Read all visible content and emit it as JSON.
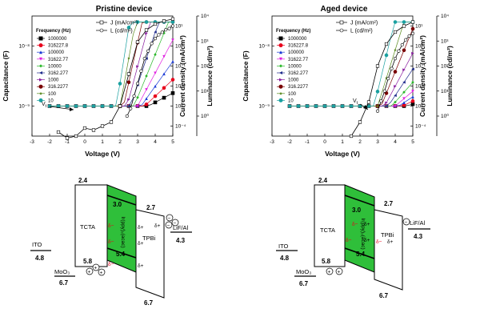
{
  "chart_data": [
    {
      "type": "line",
      "title": "Pristine device",
      "xlabel": "Voltage (V)",
      "ylabel": "Capacitance (F)",
      "y2label": "Current density (mA/cm²)",
      "y3label": "Luminance (cd/m²)",
      "xlim": [
        -3,
        5
      ],
      "x_ticks": [
        "-3",
        "-2",
        "-1",
        "0",
        "1",
        "2",
        "3",
        "4",
        "5"
      ],
      "y_ticks": [
        "10⁻⁹",
        "10⁻⁸"
      ],
      "y2_ticks": [
        "10⁻⁴",
        "10⁻³",
        "10⁻²",
        "10⁻¹",
        "10⁰",
        "10¹"
      ],
      "y3_ticks": [
        "10⁰",
        "10¹",
        "10²",
        "10³",
        "10⁴"
      ],
      "annotation": "V",
      "annotation_sub": "t",
      "legend_title": "Frequency (Hz)",
      "jl_legend": [
        {
          "label": "J (mA/cm²)"
        },
        {
          "label": "L (cd/m²)"
        }
      ],
      "series": [
        {
          "name": "1000000",
          "color": "#000000",
          "marker": "square"
        },
        {
          "name": "316227.8",
          "color": "#e8001c",
          "marker": "circle"
        },
        {
          "name": "100000",
          "color": "#1a3ad6",
          "marker": "triangle-up"
        },
        {
          "name": "31622.77",
          "color": "#e020e0",
          "marker": "triangle-down"
        },
        {
          "name": "10000",
          "color": "#2ab82a",
          "marker": "diamond"
        },
        {
          "name": "3162.277",
          "color": "#1e2a8c",
          "marker": "triangle-left"
        },
        {
          "name": "1000",
          "color": "#8a1ea0",
          "marker": "triangle-right"
        },
        {
          "name": "316.2277",
          "color": "#7a0000",
          "marker": "circle"
        },
        {
          "name": "100",
          "color": "#5a8a1e",
          "marker": "star"
        },
        {
          "name": "10",
          "color": "#1aa0a0",
          "marker": "circle"
        }
      ],
      "onset_v": [
        3.6,
        3.4,
        3.2,
        3.0,
        2.8,
        2.6,
        2.4,
        2.2,
        2.0,
        1.8
      ],
      "rise_k": [
        0.28,
        0.5,
        0.75,
        1.0,
        1.3,
        1.6,
        2.0,
        2.4,
        2.9,
        3.4
      ],
      "baseline_log_c": -9.0,
      "current_v": [
        -1.5,
        -1.0,
        -0.5,
        0.0,
        0.5,
        1.0,
        1.5,
        2.0,
        2.5,
        3.0,
        3.5,
        4.0,
        4.5,
        5.0
      ],
      "current_log": [
        -4.3,
        -4.6,
        -4.5,
        -4.1,
        -4.2,
        -4.0,
        -3.8,
        -3.0,
        -1.4,
        0.2,
        0.8,
        1.1,
        1.25,
        1.35
      ],
      "lum_v": [
        2.4,
        2.6,
        2.8,
        3.0,
        3.2,
        3.4,
        3.6,
        3.8,
        4.0,
        4.2,
        4.4,
        4.6,
        4.8,
        5.0
      ],
      "lum_log": [
        0.0,
        0.3,
        0.8,
        1.3,
        1.8,
        2.3,
        2.6,
        2.9,
        3.1,
        3.25,
        3.35,
        3.45,
        3.5,
        3.6
      ]
    },
    {
      "type": "line",
      "title": "Aged device",
      "xlabel": "Voltage (V)",
      "ylabel": "Capacitance (F)",
      "y2label": "Current density (mA/cm²)",
      "y3label": "Luminance (cd/m²)",
      "xlim": [
        -3,
        5
      ],
      "x_ticks": [
        "-3",
        "-2",
        "-1",
        "0",
        "1",
        "2",
        "3",
        "4",
        "5"
      ],
      "y_ticks": [
        "10⁻⁹",
        "10⁻⁸"
      ],
      "y2_ticks": [
        "10⁻⁴",
        "10⁻³",
        "10⁻²",
        "10⁻¹",
        "10⁰",
        "10¹"
      ],
      "y3_ticks": [
        "10⁰",
        "10¹",
        "10²",
        "10³",
        "10⁴"
      ],
      "annotation": "V",
      "annotation_sub": "t",
      "legend_title": "Frequency (Hz)",
      "jl_legend": [
        {
          "label": "J (mA/cm²)"
        },
        {
          "label": "L (cd/m²)"
        }
      ],
      "series": [
        {
          "name": "1000000",
          "color": "#000000",
          "marker": "square"
        },
        {
          "name": "316227.8",
          "color": "#e8001c",
          "marker": "circle"
        },
        {
          "name": "100000",
          "color": "#1a3ad6",
          "marker": "triangle-up"
        },
        {
          "name": "31622.77",
          "color": "#e020e0",
          "marker": "triangle-down"
        },
        {
          "name": "10000",
          "color": "#2ab82a",
          "marker": "diamond"
        },
        {
          "name": "3162.277",
          "color": "#1e2a8c",
          "marker": "triangle-left"
        },
        {
          "name": "1000",
          "color": "#8a1ea0",
          "marker": "triangle-right"
        },
        {
          "name": "316.2277",
          "color": "#7a0000",
          "marker": "circle"
        },
        {
          "name": "100",
          "color": "#5a8a1e",
          "marker": "star"
        },
        {
          "name": "10",
          "color": "#1aa0a0",
          "marker": "circle"
        }
      ],
      "onset_v": [
        4.6,
        4.4,
        4.2,
        4.0,
        3.8,
        3.6,
        3.4,
        3.2,
        3.0,
        2.8
      ],
      "rise_k": [
        0.15,
        0.25,
        0.35,
        0.45,
        0.6,
        0.8,
        1.0,
        1.3,
        1.7,
        2.2
      ],
      "baseline_log_c": -9.0,
      "current_v": [
        1.5,
        2.0,
        2.5,
        3.0,
        3.5,
        4.0,
        4.5,
        5.0
      ],
      "current_log": [
        -4.5,
        -3.8,
        -2.8,
        -1.0,
        0.1,
        0.7,
        1.0,
        1.2
      ],
      "lum_v": [
        3.0,
        3.2,
        3.4,
        3.6,
        3.8,
        4.0,
        4.2,
        4.4,
        4.6,
        4.8,
        5.0
      ],
      "lum_log": [
        0.2,
        0.6,
        1.0,
        1.5,
        1.9,
        2.3,
        2.6,
        2.85,
        3.05,
        3.2,
        3.3
      ]
    }
  ],
  "diagrams": [
    {
      "ito_label": "ITO",
      "ito_value": "4.8",
      "moo3_label": "MoO₃",
      "moo3_value": "6.7",
      "tcta_label": "TCTA",
      "tcta_top": "2.4",
      "tcta_bottom": "5.8",
      "emitter_label": "Ir(ppy)₂(acac)",
      "emitter_top": "3.0",
      "emitter_bottom": "5.4",
      "tpbi_label": "TPBi",
      "tpbi_top": "2.7",
      "tpbi_bottom": "6.7",
      "cathode_label": "LiF/Al",
      "cathode_value": "4.3",
      "delta_plus": "δ+",
      "delta_minus": "δ−",
      "plus_sign": "+",
      "minus_sign": "−"
    },
    {
      "ito_label": "ITO",
      "ito_value": "4.8",
      "moo3_label": "MoO₃",
      "moo3_value": "6.7",
      "tcta_label": "TCTA",
      "tcta_top": "2.4",
      "tcta_bottom": "5.8",
      "emitter_label": "Ir(ppy)₂(acac)",
      "emitter_top": "3.0",
      "emitter_bottom": "5.4",
      "tpbi_label": "TPBi",
      "tpbi_top": "2.7",
      "tpbi_bottom": "6.7",
      "cathode_label": "LiF/Al",
      "cathode_value": "4.3",
      "delta_plus": "δ+",
      "delta_minus": "δ−",
      "plus_sign": "+",
      "minus_sign": "−"
    }
  ],
  "colors": {
    "emitter_green": "#2fbf3a",
    "current_line": "#000000",
    "lum_line": "#000000"
  }
}
